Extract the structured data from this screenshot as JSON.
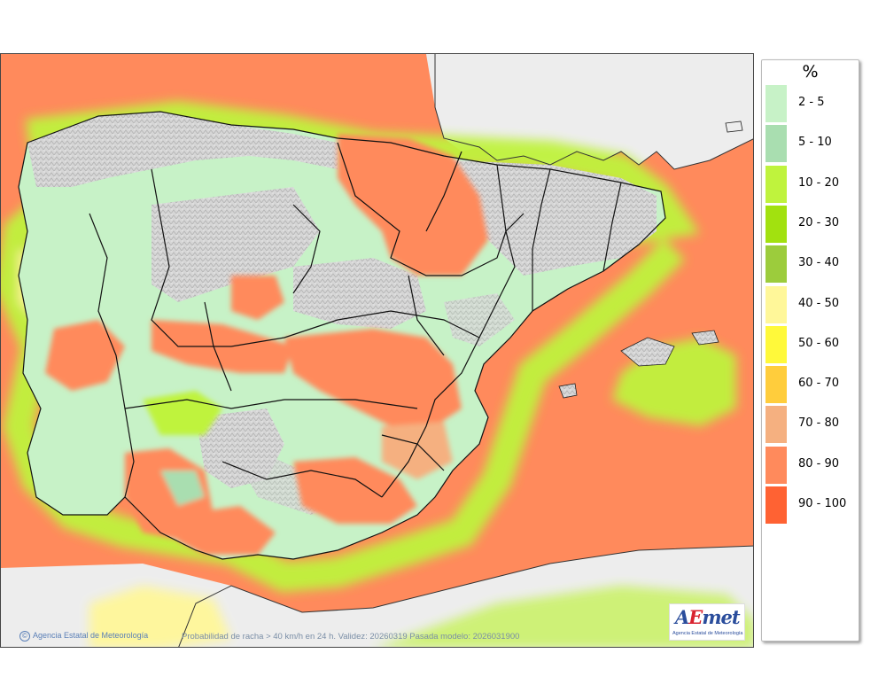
{
  "legend": {
    "unit": "%",
    "classes": [
      {
        "label": "2 - 5",
        "color": "#c7f2c7"
      },
      {
        "label": "5 - 10",
        "color": "#a9deb0"
      },
      {
        "label": "10 - 20",
        "color": "#bff33d"
      },
      {
        "label": "20 - 30",
        "color": "#a2e10f"
      },
      {
        "label": "30 - 40",
        "color": "#9ccc3c"
      },
      {
        "label": "40 - 50",
        "color": "#fff799"
      },
      {
        "label": "50 - 60",
        "color": "#fff93a"
      },
      {
        "label": "60 - 70",
        "color": "#ffcd3c"
      },
      {
        "label": "70 - 80",
        "color": "#f5b080"
      },
      {
        "label": "80 - 90",
        "color": "#ff8a5c"
      },
      {
        "label": "90 - 100",
        "color": "#ff6233"
      }
    ]
  },
  "map": {
    "sea_color": "#ff8a5c",
    "land_gray": "#d4d4d4",
    "no_data_color": "#ededed",
    "border_color": "#111111"
  },
  "footer": {
    "copyright": "Agencia Estatal de Meteorología",
    "caption": "Probabilidad de racha > 40 km/h en 24 h. Validez: 20260319 Pasada modelo: 2026031900"
  },
  "logo": {
    "mark_a": "A",
    "mark_e": "E",
    "mark_m": "met",
    "subtitle": "Agencia Estatal de Meteorología"
  }
}
